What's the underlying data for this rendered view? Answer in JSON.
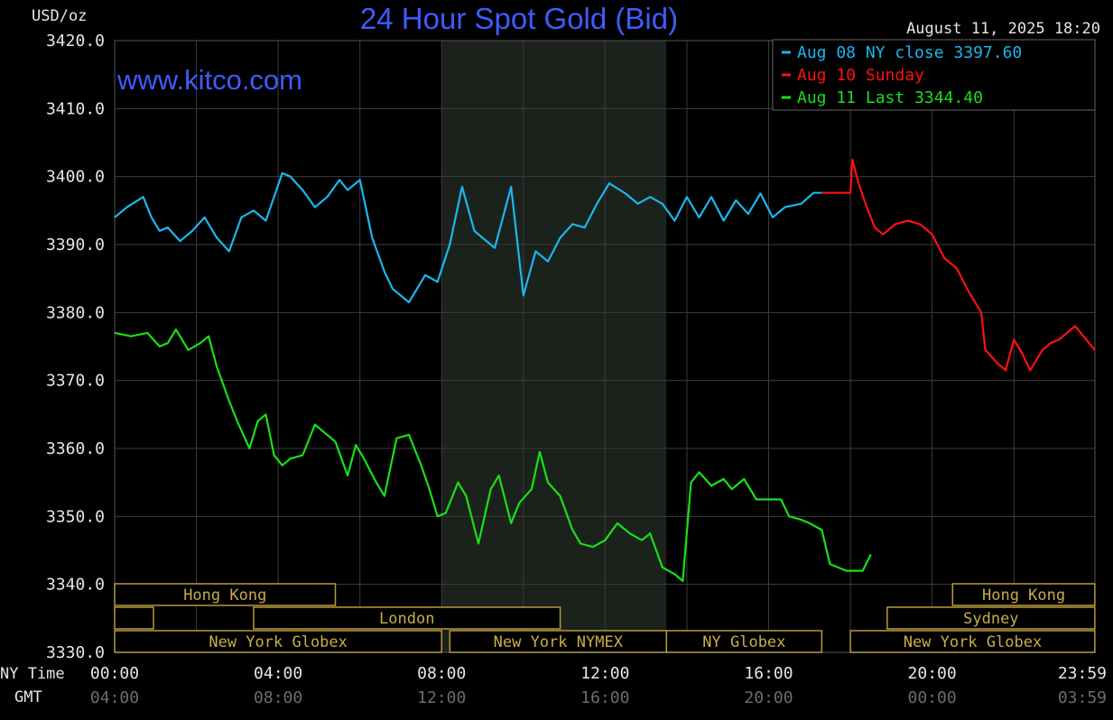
{
  "chart_data": {
    "type": "line",
    "title": "24 Hour Spot Gold (Bid)",
    "unit_label": "USD/oz",
    "date_label": "August 11, 2025 18:20",
    "watermark": "www.kitco.com",
    "ylim": [
      3330,
      3420
    ],
    "y_ticks": [
      "3420.0",
      "3410.0",
      "3400.0",
      "3390.0",
      "3380.0",
      "3370.0",
      "3360.0",
      "3350.0",
      "3340.0",
      "3330.0"
    ],
    "x_row_labels": {
      "ny": "NY Time",
      "gmt": "GMT"
    },
    "x_ticks_ny": [
      "00:00",
      "04:00",
      "08:00",
      "12:00",
      "16:00",
      "20:00",
      "23:59"
    ],
    "x_ticks_gmt": [
      "04:00",
      "08:00",
      "12:00",
      "16:00",
      "20:00",
      "00:00",
      "03:59"
    ],
    "x_tick_hours": [
      0,
      4,
      8,
      12,
      16,
      20,
      23.983
    ],
    "legend": [
      {
        "label": "Aug 08 NY close 3397.60",
        "color": "#19b7ee"
      },
      {
        "label": "Aug 10 Sunday",
        "color": "#ff1010"
      },
      {
        "label": "Aug 11 Last 3344.40",
        "color": "#18e018"
      }
    ],
    "shaded_region_hours": [
      8,
      13.5
    ],
    "series": [
      {
        "name": "Aug 08 NY close",
        "color": "#19b7ee",
        "x": [
          0,
          0.3,
          0.7,
          0.9,
          1.1,
          1.3,
          1.6,
          1.9,
          2.2,
          2.5,
          2.8,
          3.1,
          3.4,
          3.7,
          3.9,
          4.1,
          4.3,
          4.6,
          4.9,
          5.2,
          5.5,
          5.7,
          6.0,
          6.3,
          6.6,
          6.8,
          7.2,
          7.6,
          7.9,
          8.2,
          8.5,
          8.8,
          9.0,
          9.3,
          9.5,
          9.7,
          10.0,
          10.3,
          10.6,
          10.9,
          11.2,
          11.5,
          11.8,
          12.1,
          12.5,
          12.8,
          13.1,
          13.4,
          13.7,
          14.0,
          14.3,
          14.6,
          14.9,
          15.2,
          15.5,
          15.8,
          16.1,
          16.4,
          16.8,
          17.1,
          17.3
        ],
        "values": [
          3394,
          3395.5,
          3397,
          3394,
          3392,
          3392.5,
          3390.5,
          3392,
          3394,
          3391,
          3389,
          3394,
          3395,
          3393.5,
          3397,
          3400.5,
          3400,
          3398,
          3395.5,
          3397,
          3399.5,
          3398,
          3399.5,
          3391,
          3386,
          3383.5,
          3381.5,
          3385.5,
          3384.5,
          3390,
          3398.5,
          3392,
          3391,
          3389.5,
          3394,
          3398.5,
          3382.5,
          3389,
          3387.5,
          3391,
          3393,
          3392.5,
          3396,
          3399,
          3397.5,
          3396,
          3397,
          3396,
          3393.5,
          3397,
          3394,
          3397,
          3393.5,
          3396.5,
          3394.5,
          3397.5,
          3394,
          3395.5,
          3396,
          3397.6,
          3397.6
        ]
      },
      {
        "name": "Aug 10 Sunday",
        "color": "#ff1010",
        "x": [
          17.3,
          18.0,
          18.05,
          18.2,
          18.4,
          18.6,
          18.8,
          19.1,
          19.4,
          19.7,
          20.0,
          20.3,
          20.6,
          20.9,
          21.2,
          21.3,
          21.6,
          21.8,
          22.0,
          22.2,
          22.4,
          22.7,
          22.9,
          23.1,
          23.3,
          23.5,
          23.7,
          23.98
        ],
        "values": [
          3397.6,
          3397.6,
          3402.5,
          3399,
          3395.5,
          3392.5,
          3391.5,
          3393,
          3393.5,
          3393,
          3391.5,
          3388,
          3386.5,
          3383,
          3380,
          3374.5,
          3372.5,
          3371.5,
          3376,
          3374,
          3371.5,
          3374.5,
          3375.5,
          3376,
          3377,
          3378,
          3376.5,
          3374.5
        ]
      },
      {
        "name": "Aug 11 Last",
        "color": "#18e018",
        "x": [
          0,
          0.4,
          0.8,
          1.1,
          1.3,
          1.5,
          1.8,
          2.1,
          2.3,
          2.5,
          2.8,
          3.0,
          3.3,
          3.5,
          3.7,
          3.9,
          4.1,
          4.3,
          4.6,
          4.9,
          5.1,
          5.4,
          5.7,
          5.9,
          6.1,
          6.4,
          6.6,
          6.9,
          7.2,
          7.5,
          7.7,
          7.9,
          8.1,
          8.4,
          8.6,
          8.9,
          9.2,
          9.4,
          9.7,
          9.9,
          10.2,
          10.4,
          10.6,
          10.9,
          11.2,
          11.4,
          11.7,
          12.0,
          12.3,
          12.6,
          12.9,
          13.1,
          13.4,
          13.55,
          13.7,
          13.9,
          14.1,
          14.3,
          14.6,
          14.9,
          15.1,
          15.4,
          15.7,
          16.0,
          16.3,
          16.5,
          16.8,
          17.0,
          17.3,
          17.5,
          17.9,
          18.1,
          18.3,
          18.5
        ],
        "values": [
          3377,
          3376.5,
          3377,
          3375,
          3375.5,
          3377.5,
          3374.5,
          3375.5,
          3376.5,
          3372,
          3367,
          3364,
          3360,
          3364,
          3365,
          3359,
          3357.5,
          3358.5,
          3359,
          3363.5,
          3362.5,
          3361,
          3356,
          3360.5,
          3358.5,
          3355,
          3353,
          3361.5,
          3362,
          3357.5,
          3354,
          3350,
          3350.5,
          3355,
          3353,
          3346,
          3354,
          3356,
          3349,
          3352,
          3354,
          3359.5,
          3355,
          3353,
          3348,
          3346,
          3345.5,
          3346.5,
          3349,
          3347.5,
          3346.5,
          3347.5,
          3342.5,
          3342,
          3341.5,
          3340.5,
          3355,
          3356.5,
          3354.5,
          3355.5,
          3354,
          3355.5,
          3352.5,
          3352.5,
          3352.5,
          3350,
          3349.5,
          3349,
          3348,
          3343,
          3342,
          3342,
          3342,
          3344.4
        ]
      }
    ],
    "session_bars": {
      "row1": [
        {
          "label": "Hong Kong",
          "start": 0,
          "end": 5.4
        },
        {
          "label": "Hong Kong",
          "start": 20.5,
          "end": 23.98
        }
      ],
      "row2": [
        {
          "label": "",
          "start": 0,
          "end": 0.95
        },
        {
          "label": "London",
          "start": 3.4,
          "end": 10.9
        },
        {
          "label": "Sydney",
          "start": 18.9,
          "end": 23.98
        }
      ],
      "row3": [
        {
          "label": "New York Globex",
          "start": 0,
          "end": 8.0
        },
        {
          "label": "New York NYMEX",
          "start": 8.2,
          "end": 13.5
        },
        {
          "label": "NY Globex",
          "start": 13.5,
          "end": 17.3
        },
        {
          "label": "New York Globex",
          "start": 18.0,
          "end": 23.98
        }
      ]
    }
  }
}
